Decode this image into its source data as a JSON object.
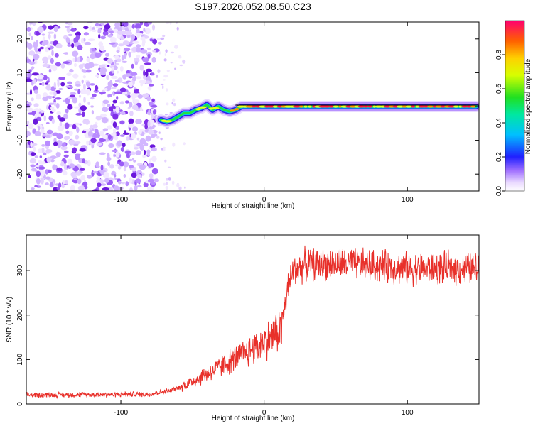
{
  "title": "S197.2026.052.08.50.C23",
  "chart_data": [
    {
      "type": "heatmap",
      "name": "spectrogram",
      "xlabel": "Height of straight line (km)",
      "ylabel": "Frequency (Hz)",
      "xlim": [
        -166,
        150
      ],
      "ylim": [
        -25,
        25
      ],
      "xticks": [
        -100,
        0,
        100
      ],
      "yticks": [
        -20,
        -10,
        0,
        10,
        20
      ],
      "colorbar": {
        "label": "Normalized spectral amplitude",
        "range": [
          0,
          1
        ],
        "ticks": [
          0.0,
          0.2,
          0.4,
          0.6,
          0.8
        ]
      },
      "noise_region_x": [
        -166,
        -75
      ],
      "ridge": {
        "x": [
          -72,
          -68,
          -64,
          -60,
          -56,
          -52,
          -48,
          -44,
          -40,
          -36,
          -32,
          -28,
          -24,
          -20,
          -16,
          -12,
          -8,
          -4,
          0,
          20,
          40,
          60,
          80,
          100,
          120,
          148
        ],
        "freq": [
          -4.0,
          -4.5,
          -4.0,
          -3.0,
          -2.0,
          -2.0,
          -1.0,
          -0.5,
          0.5,
          -1.0,
          0.0,
          -1.0,
          -1.5,
          -1.0,
          0.0,
          0.0,
          0.0,
          0.0,
          0.0,
          0.0,
          0.0,
          0.0,
          0.0,
          0.0,
          0.0,
          0.0
        ]
      }
    },
    {
      "type": "line",
      "name": "snr",
      "xlabel": "Height of straight line (km)",
      "ylabel": "SNR (10 * v/v)",
      "xlim": [
        -166,
        150
      ],
      "ylim": [
        0,
        380
      ],
      "xticks": [
        -100,
        0,
        100
      ],
      "yticks": [
        0,
        100,
        200,
        300
      ],
      "color": "#e8302a",
      "trend": {
        "x": [
          -166,
          -80,
          -65,
          -50,
          -30,
          -10,
          5,
          12,
          16,
          20,
          30,
          60,
          100,
          150
        ],
        "y": [
          20,
          22,
          30,
          50,
          85,
          120,
          150,
          170,
          250,
          300,
          315,
          315,
          305,
          305
        ]
      }
    }
  ]
}
